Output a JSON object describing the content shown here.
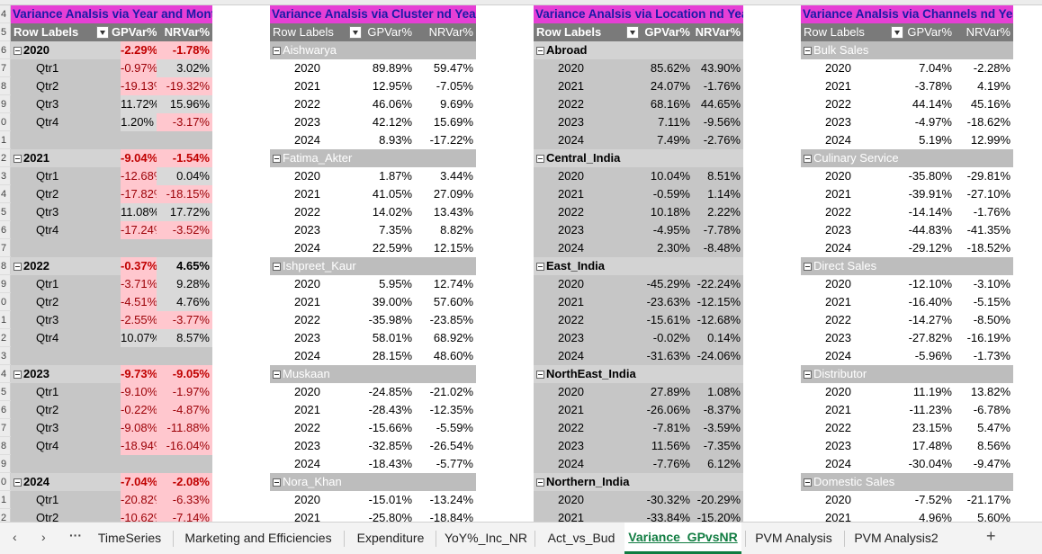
{
  "row_numbers": [
    "4",
    "5",
    "6",
    "7",
    "8",
    "9",
    "0",
    "1",
    "2",
    "3",
    "4",
    "5",
    "6",
    "7",
    "8",
    "9",
    "0",
    "1",
    "2",
    "3",
    "4",
    "5",
    "6",
    "7",
    "8",
    "9",
    "0",
    "1",
    "2"
  ],
  "pivot_year_month": {
    "title": "Variance Analsis via Year and Month",
    "headers": [
      "Row Labels",
      "GPVar%",
      "NRVar%"
    ],
    "groups": [
      {
        "label": "2020",
        "gp": "-2.29%",
        "nr": "-1.78%",
        "rows": [
          {
            "label": "Qtr1",
            "gp": "-0.97%",
            "nr": "3.02%"
          },
          {
            "label": "Qtr2",
            "gp": "-19.13%",
            "nr": "-19.32%"
          },
          {
            "label": "Qtr3",
            "gp": "11.72%",
            "nr": "15.96%"
          },
          {
            "label": "Qtr4",
            "gp": "1.20%",
            "nr": "-3.17%"
          }
        ]
      },
      {
        "label": "2021",
        "gp": "-9.04%",
        "nr": "-1.54%",
        "rows": [
          {
            "label": "Qtr1",
            "gp": "-12.68%",
            "nr": "0.04%"
          },
          {
            "label": "Qtr2",
            "gp": "-17.82%",
            "nr": "-18.15%"
          },
          {
            "label": "Qtr3",
            "gp": "11.08%",
            "nr": "17.72%"
          },
          {
            "label": "Qtr4",
            "gp": "-17.24%",
            "nr": "-3.52%"
          }
        ]
      },
      {
        "label": "2022",
        "gp": "-0.37%",
        "nr": "4.65%",
        "rows": [
          {
            "label": "Qtr1",
            "gp": "-3.71%",
            "nr": "9.28%"
          },
          {
            "label": "Qtr2",
            "gp": "-4.51%",
            "nr": "4.76%"
          },
          {
            "label": "Qtr3",
            "gp": "-2.55%",
            "nr": "-3.77%"
          },
          {
            "label": "Qtr4",
            "gp": "10.07%",
            "nr": "8.57%"
          }
        ]
      },
      {
        "label": "2023",
        "gp": "-9.73%",
        "nr": "-9.05%",
        "rows": [
          {
            "label": "Qtr1",
            "gp": "-9.10%",
            "nr": "-1.97%"
          },
          {
            "label": "Qtr2",
            "gp": "-0.22%",
            "nr": "-4.87%"
          },
          {
            "label": "Qtr3",
            "gp": "-9.08%",
            "nr": "-11.88%"
          },
          {
            "label": "Qtr4",
            "gp": "-18.94%",
            "nr": "-16.04%"
          }
        ]
      },
      {
        "label": "2024",
        "gp": "-7.04%",
        "nr": "-2.08%",
        "rows": [
          {
            "label": "Qtr1",
            "gp": "-20.82%",
            "nr": "-6.33%"
          },
          {
            "label": "Qtr2",
            "gp": "-10.62%",
            "nr": "-7.14%"
          }
        ]
      }
    ]
  },
  "pivot_cluster": {
    "title": "Variance Analsis via Cluster nd Year",
    "headers": [
      "Row Labels",
      "GPVar%",
      "NRVar%"
    ],
    "groups": [
      {
        "label": "Aishwarya",
        "rows": [
          {
            "label": "2020",
            "gp": "89.89%",
            "nr": "59.47%"
          },
          {
            "label": "2021",
            "gp": "12.95%",
            "nr": "-7.05%"
          },
          {
            "label": "2022",
            "gp": "46.06%",
            "nr": "9.69%"
          },
          {
            "label": "2023",
            "gp": "42.12%",
            "nr": "15.69%"
          },
          {
            "label": "2024",
            "gp": "8.93%",
            "nr": "-17.22%"
          }
        ]
      },
      {
        "label": "Fatima_Akter",
        "rows": [
          {
            "label": "2020",
            "gp": "1.87%",
            "nr": "3.44%"
          },
          {
            "label": "2021",
            "gp": "41.05%",
            "nr": "27.09%"
          },
          {
            "label": "2022",
            "gp": "14.02%",
            "nr": "13.43%"
          },
          {
            "label": "2023",
            "gp": "7.35%",
            "nr": "8.82%"
          },
          {
            "label": "2024",
            "gp": "22.59%",
            "nr": "12.15%"
          }
        ]
      },
      {
        "label": "Ishpreet_Kaur",
        "rows": [
          {
            "label": "2020",
            "gp": "5.95%",
            "nr": "12.74%"
          },
          {
            "label": "2021",
            "gp": "39.00%",
            "nr": "57.60%"
          },
          {
            "label": "2022",
            "gp": "-35.98%",
            "nr": "-23.85%"
          },
          {
            "label": "2023",
            "gp": "58.01%",
            "nr": "68.92%"
          },
          {
            "label": "2024",
            "gp": "28.15%",
            "nr": "48.60%"
          }
        ]
      },
      {
        "label": "Muskaan",
        "rows": [
          {
            "label": "2020",
            "gp": "-24.85%",
            "nr": "-21.02%"
          },
          {
            "label": "2021",
            "gp": "-28.43%",
            "nr": "-12.35%"
          },
          {
            "label": "2022",
            "gp": "-15.66%",
            "nr": "-5.59%"
          },
          {
            "label": "2023",
            "gp": "-32.85%",
            "nr": "-26.54%"
          },
          {
            "label": "2024",
            "gp": "-18.43%",
            "nr": "-5.77%"
          }
        ]
      },
      {
        "label": "Nora_Khan",
        "rows": [
          {
            "label": "2020",
            "gp": "-15.01%",
            "nr": "-13.24%"
          },
          {
            "label": "2021",
            "gp": "-25.80%",
            "nr": "-18.84%"
          }
        ]
      }
    ]
  },
  "pivot_location": {
    "title": "Variance Analsis via Location nd Year",
    "headers": [
      "Row Labels",
      "GPVar%",
      "NRVar%"
    ],
    "groups": [
      {
        "label": "Abroad",
        "rows": [
          {
            "label": "2020",
            "gp": "85.62%",
            "nr": "43.90%"
          },
          {
            "label": "2021",
            "gp": "24.07%",
            "nr": "-1.76%"
          },
          {
            "label": "2022",
            "gp": "68.16%",
            "nr": "44.65%"
          },
          {
            "label": "2023",
            "gp": "7.11%",
            "nr": "-9.56%"
          },
          {
            "label": "2024",
            "gp": "7.49%",
            "nr": "-2.76%"
          }
        ]
      },
      {
        "label": "Central_India",
        "rows": [
          {
            "label": "2020",
            "gp": "10.04%",
            "nr": "8.51%"
          },
          {
            "label": "2021",
            "gp": "-0.59%",
            "nr": "1.14%"
          },
          {
            "label": "2022",
            "gp": "10.18%",
            "nr": "2.22%"
          },
          {
            "label": "2023",
            "gp": "-4.95%",
            "nr": "-7.78%"
          },
          {
            "label": "2024",
            "gp": "2.30%",
            "nr": "-8.48%"
          }
        ]
      },
      {
        "label": "East_India",
        "rows": [
          {
            "label": "2020",
            "gp": "-45.29%",
            "nr": "-22.24%"
          },
          {
            "label": "2021",
            "gp": "-23.63%",
            "nr": "-12.15%"
          },
          {
            "label": "2022",
            "gp": "-15.61%",
            "nr": "-12.68%"
          },
          {
            "label": "2023",
            "gp": "-0.02%",
            "nr": "0.14%"
          },
          {
            "label": "2024",
            "gp": "-31.63%",
            "nr": "-24.06%"
          }
        ]
      },
      {
        "label": "NorthEast_India",
        "rows": [
          {
            "label": "2020",
            "gp": "27.89%",
            "nr": "1.08%"
          },
          {
            "label": "2021",
            "gp": "-26.06%",
            "nr": "-8.37%"
          },
          {
            "label": "2022",
            "gp": "-7.81%",
            "nr": "-3.59%"
          },
          {
            "label": "2023",
            "gp": "11.56%",
            "nr": "-7.35%"
          },
          {
            "label": "2024",
            "gp": "-7.76%",
            "nr": "6.12%"
          }
        ]
      },
      {
        "label": "Northern_India",
        "rows": [
          {
            "label": "2020",
            "gp": "-30.32%",
            "nr": "-20.29%"
          },
          {
            "label": "2021",
            "gp": "-33.84%",
            "nr": "-15.20%"
          }
        ]
      }
    ]
  },
  "pivot_channels": {
    "title": "Variance Analsis via Channels nd Year",
    "headers": [
      "Row Labels",
      "GPVar%",
      "NRVar%"
    ],
    "groups": [
      {
        "label": "Bulk Sales",
        "rows": [
          {
            "label": "2020",
            "gp": "7.04%",
            "nr": "-2.28%"
          },
          {
            "label": "2021",
            "gp": "-3.78%",
            "nr": "4.19%"
          },
          {
            "label": "2022",
            "gp": "44.14%",
            "nr": "45.16%"
          },
          {
            "label": "2023",
            "gp": "-4.97%",
            "nr": "-18.62%"
          },
          {
            "label": "2024",
            "gp": "5.19%",
            "nr": "12.99%"
          }
        ]
      },
      {
        "label": "Culinary Service",
        "rows": [
          {
            "label": "2020",
            "gp": "-35.80%",
            "nr": "-29.81%"
          },
          {
            "label": "2021",
            "gp": "-39.91%",
            "nr": "-27.10%"
          },
          {
            "label": "2022",
            "gp": "-14.14%",
            "nr": "-1.76%"
          },
          {
            "label": "2023",
            "gp": "-44.83%",
            "nr": "-41.35%"
          },
          {
            "label": "2024",
            "gp": "-29.12%",
            "nr": "-18.52%"
          }
        ]
      },
      {
        "label": "Direct Sales",
        "rows": [
          {
            "label": "2020",
            "gp": "-12.10%",
            "nr": "-3.10%"
          },
          {
            "label": "2021",
            "gp": "-16.40%",
            "nr": "-5.15%"
          },
          {
            "label": "2022",
            "gp": "-14.27%",
            "nr": "-8.50%"
          },
          {
            "label": "2023",
            "gp": "-27.82%",
            "nr": "-16.19%"
          },
          {
            "label": "2024",
            "gp": "-5.96%",
            "nr": "-1.73%"
          }
        ]
      },
      {
        "label": "Distributor",
        "rows": [
          {
            "label": "2020",
            "gp": "11.19%",
            "nr": "13.82%"
          },
          {
            "label": "2021",
            "gp": "-11.23%",
            "nr": "-6.78%"
          },
          {
            "label": "2022",
            "gp": "23.15%",
            "nr": "5.47%"
          },
          {
            "label": "2023",
            "gp": "17.48%",
            "nr": "8.56%"
          },
          {
            "label": "2024",
            "gp": "-30.04%",
            "nr": "-9.47%"
          }
        ]
      },
      {
        "label": "Domestic Sales",
        "rows": [
          {
            "label": "2020",
            "gp": "-7.52%",
            "nr": "-21.17%"
          },
          {
            "label": "2021",
            "gp": "4.96%",
            "nr": "5.60%"
          }
        ]
      }
    ]
  },
  "sheet_tabs": {
    "prev_icon": "chevron-left",
    "next_icon": "chevron-right",
    "more_icon": "ellipsis",
    "tabs": [
      "TimeSeries",
      "Marketing and Efficiencies",
      "Expenditure",
      "YoY%_Inc_NR",
      "Act_vs_Bud",
      "Variance_GPvsNR",
      "PVM Analysis",
      "PVM Analysis2"
    ],
    "active": "Variance_GPvsNR",
    "add_label": "+"
  },
  "colors": {
    "title_bg": "#e63fd5",
    "title_fg": "#1a1aa6",
    "header_bg": "#7a7a7a",
    "neg_bg": "#ffc7ce",
    "neg_fg": "#9c0006",
    "active_tab": "#107c41"
  }
}
